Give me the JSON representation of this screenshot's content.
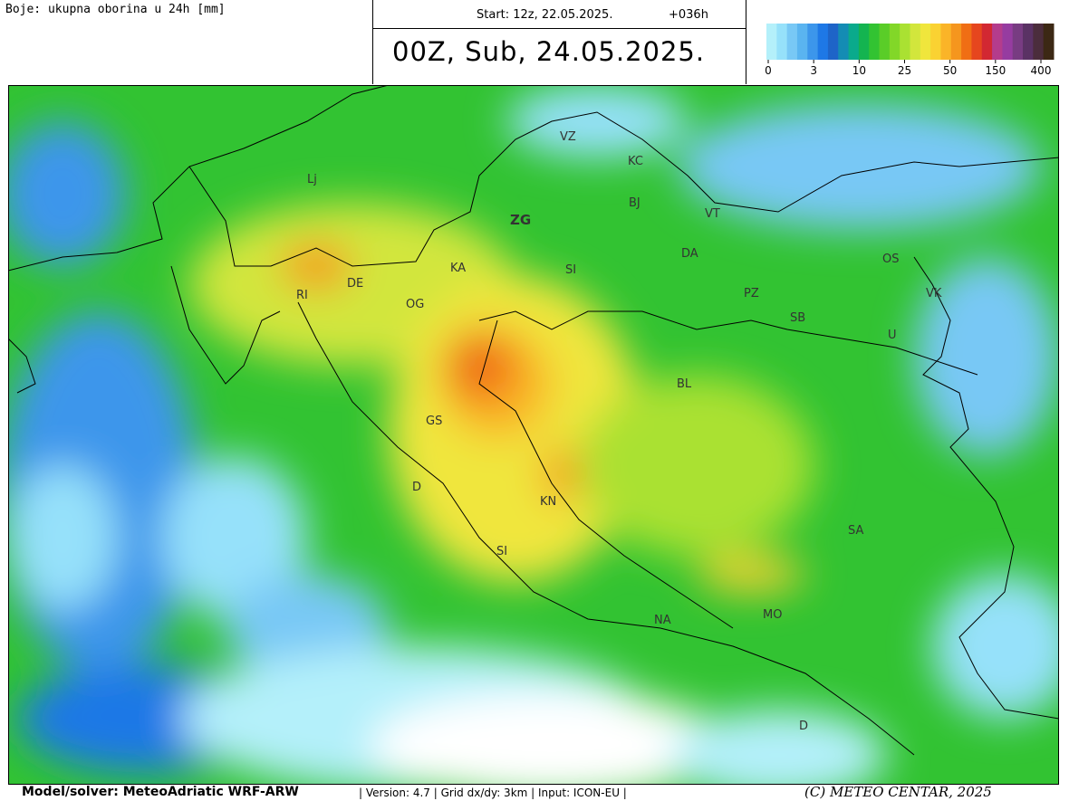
{
  "header": {
    "colors_label": "Boje: ukupna oborina u 24h [mm]",
    "start": "Start: 12z, 22.05.2025.",
    "lead": "+036h",
    "valid": "00Z, Sub, 24.05.2025."
  },
  "colorbar": {
    "colors": [
      "#b4f0fa",
      "#96e1fa",
      "#78c8f5",
      "#5ab4f0",
      "#3c96eb",
      "#1e78e6",
      "#1e64c8",
      "#148cb4",
      "#0aaa8c",
      "#14b450",
      "#32c332",
      "#5acd28",
      "#82d728",
      "#aae132",
      "#d2e63c",
      "#f0e63c",
      "#fad232",
      "#fab428",
      "#f5961e",
      "#f06e14",
      "#e6461e",
      "#d22832",
      "#b43c8c",
      "#963ca0",
      "#783c82",
      "#5a3264",
      "#4b2d3c",
      "#3c2814"
    ],
    "ticks": [
      0,
      3,
      10,
      25,
      50,
      150,
      400
    ]
  },
  "map": {
    "cities": [
      "VZ",
      "KC",
      "Lj",
      "BJ",
      "ZG",
      "VT",
      "DA",
      "OS",
      "KA",
      "SI",
      "DE",
      "RI",
      "PZ",
      "VK",
      "OG",
      "SB",
      "U",
      "BL",
      "GS",
      "D",
      "KN",
      "SA",
      "SI",
      "MO",
      "NA",
      "D"
    ]
  },
  "footer": {
    "model": "Model/solver: MeteoAdriatic WRF-ARW",
    "info": "| Version: 4.7 | Grid dx/dy: 3km | Input: ICON-EU |",
    "copyright": "(C) METEO CENTAR, 2025"
  }
}
